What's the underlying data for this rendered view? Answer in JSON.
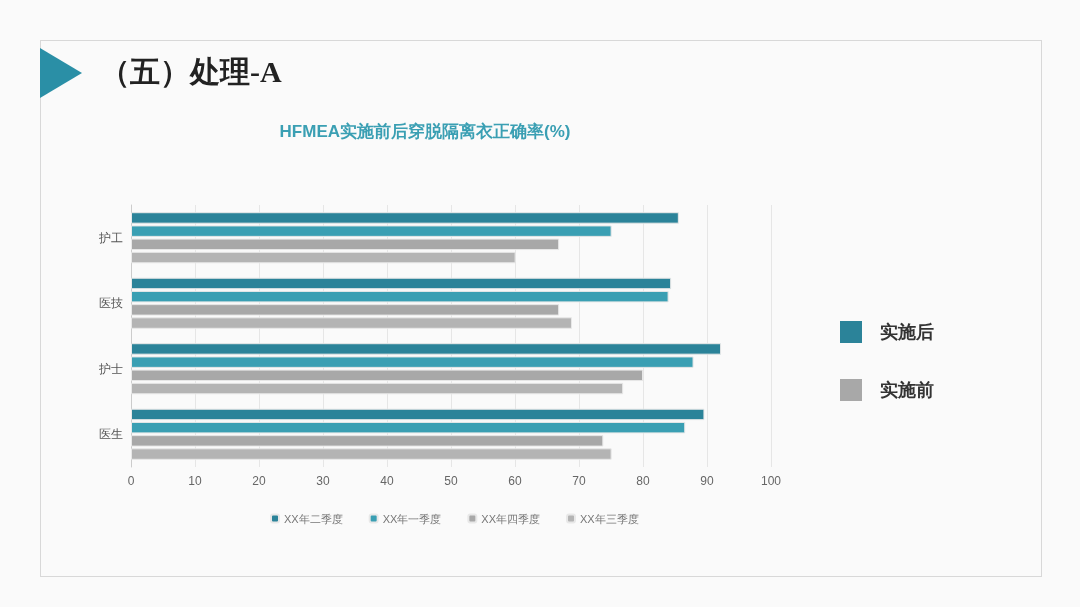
{
  "chart_data": {
    "type": "bar",
    "orientation": "horizontal",
    "title": "HFMEA实施前后穿脱隔离衣正确率(%)",
    "annotations": [
      "（五）处理-A",
      "实施后",
      "实施前"
    ],
    "categories": [
      "护工",
      "医技",
      "护士",
      "医生"
    ],
    "series": [
      {
        "name": "XX年二季度",
        "color": "#2b8399",
        "values": [
          85.6,
          84.4,
          92.2,
          89.6
        ]
      },
      {
        "name": "XX年一季度",
        "color": "#3a9fb3",
        "values": [
          75.1,
          84.0,
          87.9,
          86.6
        ]
      },
      {
        "name": "XX年四季度",
        "color": "#a8a8a8",
        "values": [
          66.9,
          66.9,
          80.0,
          73.8
        ]
      },
      {
        "name": "XX年三季度",
        "color": "#b4b4b4",
        "values": [
          60.1,
          68.9,
          76.9,
          75.1
        ]
      }
    ],
    "xlim": [
      0,
      100
    ],
    "xticks": [
      0,
      10,
      20,
      30,
      40,
      50,
      60,
      70,
      80,
      90,
      100
    ],
    "grid": "x",
    "legend": "bottom"
  }
}
